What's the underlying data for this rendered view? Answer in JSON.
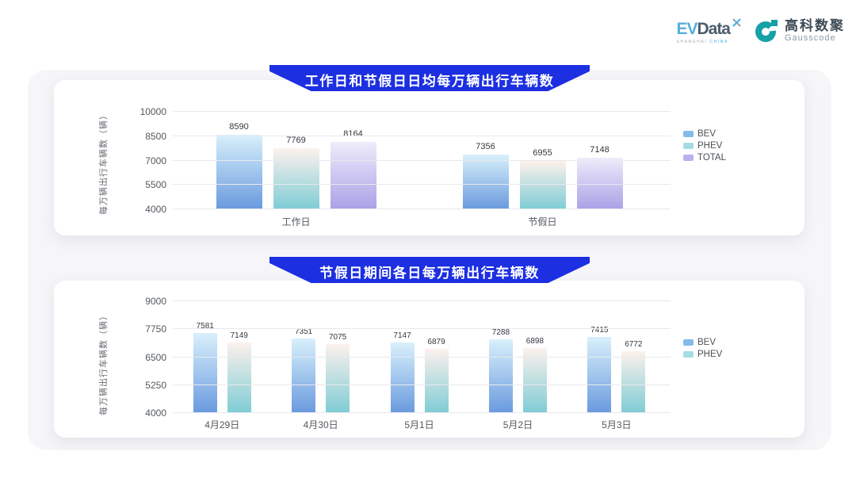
{
  "header": {
    "evdata_logo": {
      "ev": "EV",
      "data": "Data",
      "sub_left": "SHANGHAI ",
      "sub_right": "CHINA"
    },
    "gausscode_logo": {
      "cn": "高科数聚",
      "en": "Gausscode"
    }
  },
  "colors": {
    "banner_blue": "#1c2fe1",
    "panel_bg": "#f6f6f9",
    "card_bg": "#ffffff",
    "gridline": "#e9e9ee",
    "axis_text": "#53585e",
    "value_text": "#33373c",
    "logo_teal": "#16a1a7",
    "logo_blue": "#44b2ea",
    "series": {
      "BEV": {
        "top": "#d9f0fb",
        "bottom": "#699ade",
        "legend": "#85bbe9"
      },
      "PHEV": {
        "top": "#fdf1ec",
        "bottom": "#7eccd5",
        "legend": "#a6dde3"
      },
      "TOTAL": {
        "top": "#efecfb",
        "bottom": "#a9a1e6",
        "legend": "#b9b1ee"
      }
    }
  },
  "chart_data": [
    {
      "type": "bar",
      "title": "工作日和节假日日均每万辆出行车辆数",
      "ylabel": "每万辆出行车辆数（辆）",
      "xlabel": "",
      "categories": [
        "工作日",
        "节假日"
      ],
      "series": [
        {
          "name": "BEV",
          "values": [
            8590,
            7356
          ]
        },
        {
          "name": "PHEV",
          "values": [
            7769,
            6955
          ]
        },
        {
          "name": "TOTAL",
          "values": [
            8164,
            7148
          ]
        }
      ],
      "ylim": [
        4000,
        10000
      ],
      "yticks": [
        4000,
        5500,
        7000,
        8500,
        10000
      ],
      "grid": true,
      "legend_position": "right"
    },
    {
      "type": "bar",
      "title": "节假日期间各日每万辆出行车辆数",
      "ylabel": "每万辆出行车辆数（辆）",
      "xlabel": "",
      "categories": [
        "4月29日",
        "4月30日",
        "5月1日",
        "5月2日",
        "5月3日"
      ],
      "series": [
        {
          "name": "BEV",
          "values": [
            7581,
            7351,
            7147,
            7288,
            7415
          ]
        },
        {
          "name": "PHEV",
          "values": [
            7149,
            7075,
            6879,
            6898,
            6772
          ]
        }
      ],
      "ylim": [
        4000,
        9000
      ],
      "yticks": [
        4000,
        5250,
        6500,
        7750,
        9000
      ],
      "grid": true,
      "legend_position": "right"
    }
  ]
}
